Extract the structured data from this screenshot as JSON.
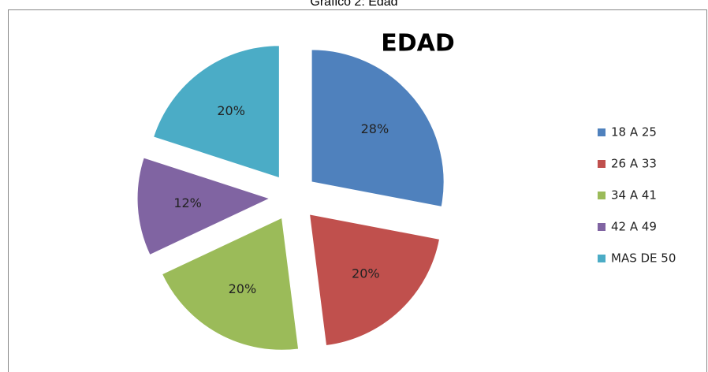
{
  "chart_data": {
    "type": "pie",
    "caption": "Grafico 2: Edad",
    "title": "EDAD",
    "categories": [
      "18 A 25",
      "26 A 33",
      "34 A 41",
      "42 A 49",
      "MAS DE 50"
    ],
    "values": [
      28,
      20,
      20,
      12,
      20
    ],
    "value_labels": [
      "28%",
      "20%",
      "20%",
      "12%",
      "20%"
    ],
    "colors": [
      "#4f81bd",
      "#c0504d",
      "#9bbb59",
      "#8064a2",
      "#4bacc6"
    ],
    "legend": "right"
  }
}
